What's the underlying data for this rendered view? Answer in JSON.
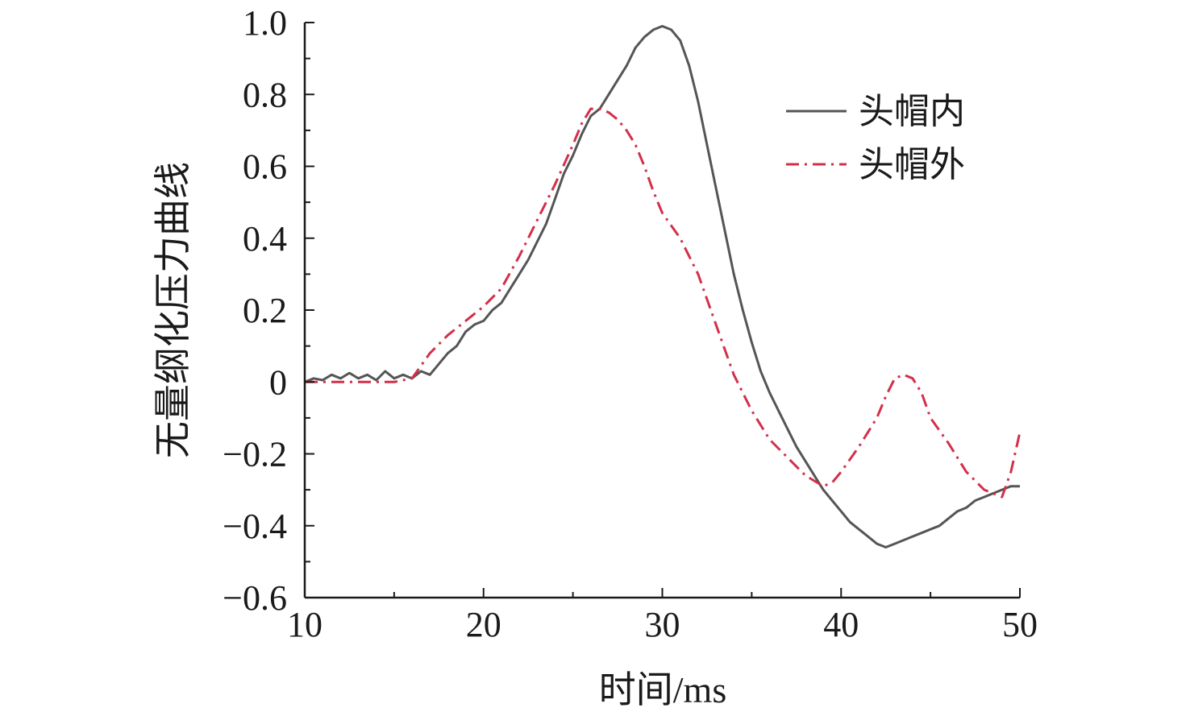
{
  "chart_data": {
    "type": "line",
    "xlabel": "时间/ms",
    "ylabel": "无量纲化压力曲线",
    "xlim": [
      10,
      50
    ],
    "ylim": [
      -0.6,
      1.0
    ],
    "xticks": [
      10,
      20,
      30,
      40,
      50
    ],
    "xtick_labels": [
      "10",
      "20",
      "30",
      "40",
      "50"
    ],
    "yticks": [
      1.0,
      0.8,
      0.6,
      0.4,
      0.2,
      0,
      -0.2,
      -0.4,
      -0.6
    ],
    "ytick_labels": [
      "1.0",
      "0.8",
      "0.6",
      "0.4",
      "0.2",
      "0",
      "−0.2",
      "−0.4",
      "−0.6"
    ],
    "grid": false,
    "legend_position": "top-right",
    "series": [
      {
        "name": "头帽内",
        "color": "#555555",
        "dash": "solid",
        "x": [
          10,
          10.5,
          11,
          11.5,
          12,
          12.5,
          13,
          13.5,
          14,
          14.5,
          15,
          15.5,
          16,
          16.5,
          17,
          17.5,
          18,
          18.5,
          19,
          19.5,
          20,
          20.5,
          21,
          21.5,
          22,
          22.5,
          23,
          23.5,
          24,
          24.5,
          25,
          25.5,
          26,
          26.5,
          27,
          27.5,
          28,
          28.5,
          29,
          29.5,
          30,
          30.5,
          31,
          31.5,
          32,
          32.5,
          33,
          33.5,
          34,
          34.5,
          35,
          35.5,
          36,
          36.5,
          37,
          37.5,
          38,
          38.5,
          39,
          39.5,
          40,
          40.5,
          41,
          41.5,
          42,
          42.5,
          43,
          43.5,
          44,
          44.5,
          45,
          45.5,
          46,
          46.5,
          47,
          47.5,
          48,
          48.5,
          49,
          49.5,
          50
        ],
        "y": [
          0,
          0.01,
          0.005,
          0.02,
          0.01,
          0.025,
          0.01,
          0.02,
          0.005,
          0.03,
          0.01,
          0.02,
          0.01,
          0.03,
          0.02,
          0.05,
          0.08,
          0.1,
          0.14,
          0.16,
          0.17,
          0.2,
          0.22,
          0.26,
          0.3,
          0.34,
          0.39,
          0.44,
          0.51,
          0.58,
          0.63,
          0.69,
          0.74,
          0.76,
          0.8,
          0.84,
          0.88,
          0.93,
          0.96,
          0.98,
          0.99,
          0.98,
          0.95,
          0.88,
          0.78,
          0.66,
          0.54,
          0.42,
          0.3,
          0.2,
          0.11,
          0.03,
          -0.03,
          -0.08,
          -0.13,
          -0.18,
          -0.22,
          -0.26,
          -0.3,
          -0.33,
          -0.36,
          -0.39,
          -0.41,
          -0.43,
          -0.45,
          -0.46,
          -0.45,
          -0.44,
          -0.43,
          -0.42,
          -0.41,
          -0.4,
          -0.38,
          -0.36,
          -0.35,
          -0.33,
          -0.32,
          -0.31,
          -0.3,
          -0.29,
          -0.29
        ]
      },
      {
        "name": "头帽外",
        "color": "#d32f4a",
        "dash": "dashdot",
        "x": [
          10,
          11,
          12,
          13,
          14,
          15,
          16,
          17,
          18,
          19,
          20,
          21,
          22,
          23,
          24,
          25,
          25.5,
          26,
          26.5,
          27,
          27.5,
          28,
          28.5,
          29,
          29.5,
          30,
          31,
          32,
          33,
          34,
          35,
          36,
          37,
          38,
          39,
          39.5,
          40,
          41,
          42,
          42.5,
          43,
          43.5,
          44,
          44.5,
          45,
          46,
          47,
          48,
          49,
          49.5,
          50
        ],
        "y": [
          0,
          0,
          0,
          0,
          0,
          0,
          0.01,
          0.08,
          0.13,
          0.17,
          0.21,
          0.26,
          0.35,
          0.45,
          0.55,
          0.66,
          0.72,
          0.76,
          0.76,
          0.75,
          0.73,
          0.7,
          0.66,
          0.6,
          0.53,
          0.47,
          0.4,
          0.3,
          0.16,
          0.02,
          -0.08,
          -0.16,
          -0.21,
          -0.26,
          -0.29,
          -0.28,
          -0.25,
          -0.18,
          -0.1,
          -0.04,
          0.01,
          0.02,
          0.01,
          -0.03,
          -0.1,
          -0.17,
          -0.25,
          -0.3,
          -0.32,
          -0.25,
          -0.14
        ]
      }
    ]
  }
}
